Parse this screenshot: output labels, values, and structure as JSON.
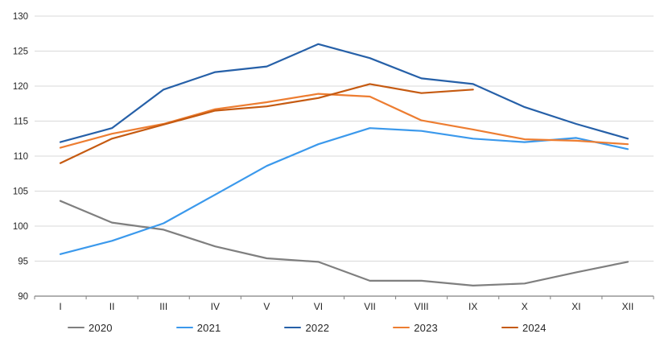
{
  "chart_data": {
    "type": "line",
    "title": "",
    "xlabel": "",
    "ylabel": "",
    "x_categories": [
      "I",
      "II",
      "III",
      "IV",
      "V",
      "VI",
      "VII",
      "VIII",
      "IX",
      "X",
      "XI",
      "XII"
    ],
    "y_axis": {
      "min": 90,
      "max": 130,
      "step": 5,
      "tick_labels": [
        "90",
        "95",
        "100",
        "105",
        "110",
        "115",
        "120",
        "125",
        "130"
      ]
    },
    "grid": true,
    "legend_position": "bottom",
    "series": [
      {
        "name": "2020",
        "color": "#7F7F7F",
        "values": [
          103.6,
          100.5,
          99.5,
          97.1,
          95.4,
          94.9,
          92.2,
          92.2,
          91.5,
          91.8,
          93.4,
          94.9
        ]
      },
      {
        "name": "2021",
        "color": "#3B99EC",
        "values": [
          96.0,
          97.9,
          100.4,
          104.5,
          108.6,
          111.7,
          114.0,
          113.6,
          112.5,
          112.0,
          112.6,
          111.0
        ]
      },
      {
        "name": "2022",
        "color": "#2660A8",
        "values": [
          112.0,
          114.0,
          119.5,
          122.0,
          122.8,
          126.0,
          124.0,
          121.1,
          120.3,
          117.0,
          114.6,
          112.5
        ]
      },
      {
        "name": "2023",
        "color": "#ED7D31",
        "values": [
          111.2,
          113.2,
          114.6,
          116.7,
          117.7,
          118.9,
          118.5,
          115.1,
          113.8,
          112.4,
          112.2,
          111.7
        ]
      },
      {
        "name": "2024",
        "color": "#C55A11",
        "values": [
          109.0,
          112.5,
          114.5,
          116.5,
          117.1,
          118.3,
          120.3,
          119.0,
          119.5,
          null,
          null,
          null
        ]
      }
    ],
    "colors": {
      "background": "#FFFFFF",
      "gridline": "#D9D9D9",
      "axis_line": "#808080",
      "tick_label": "#262626"
    }
  }
}
